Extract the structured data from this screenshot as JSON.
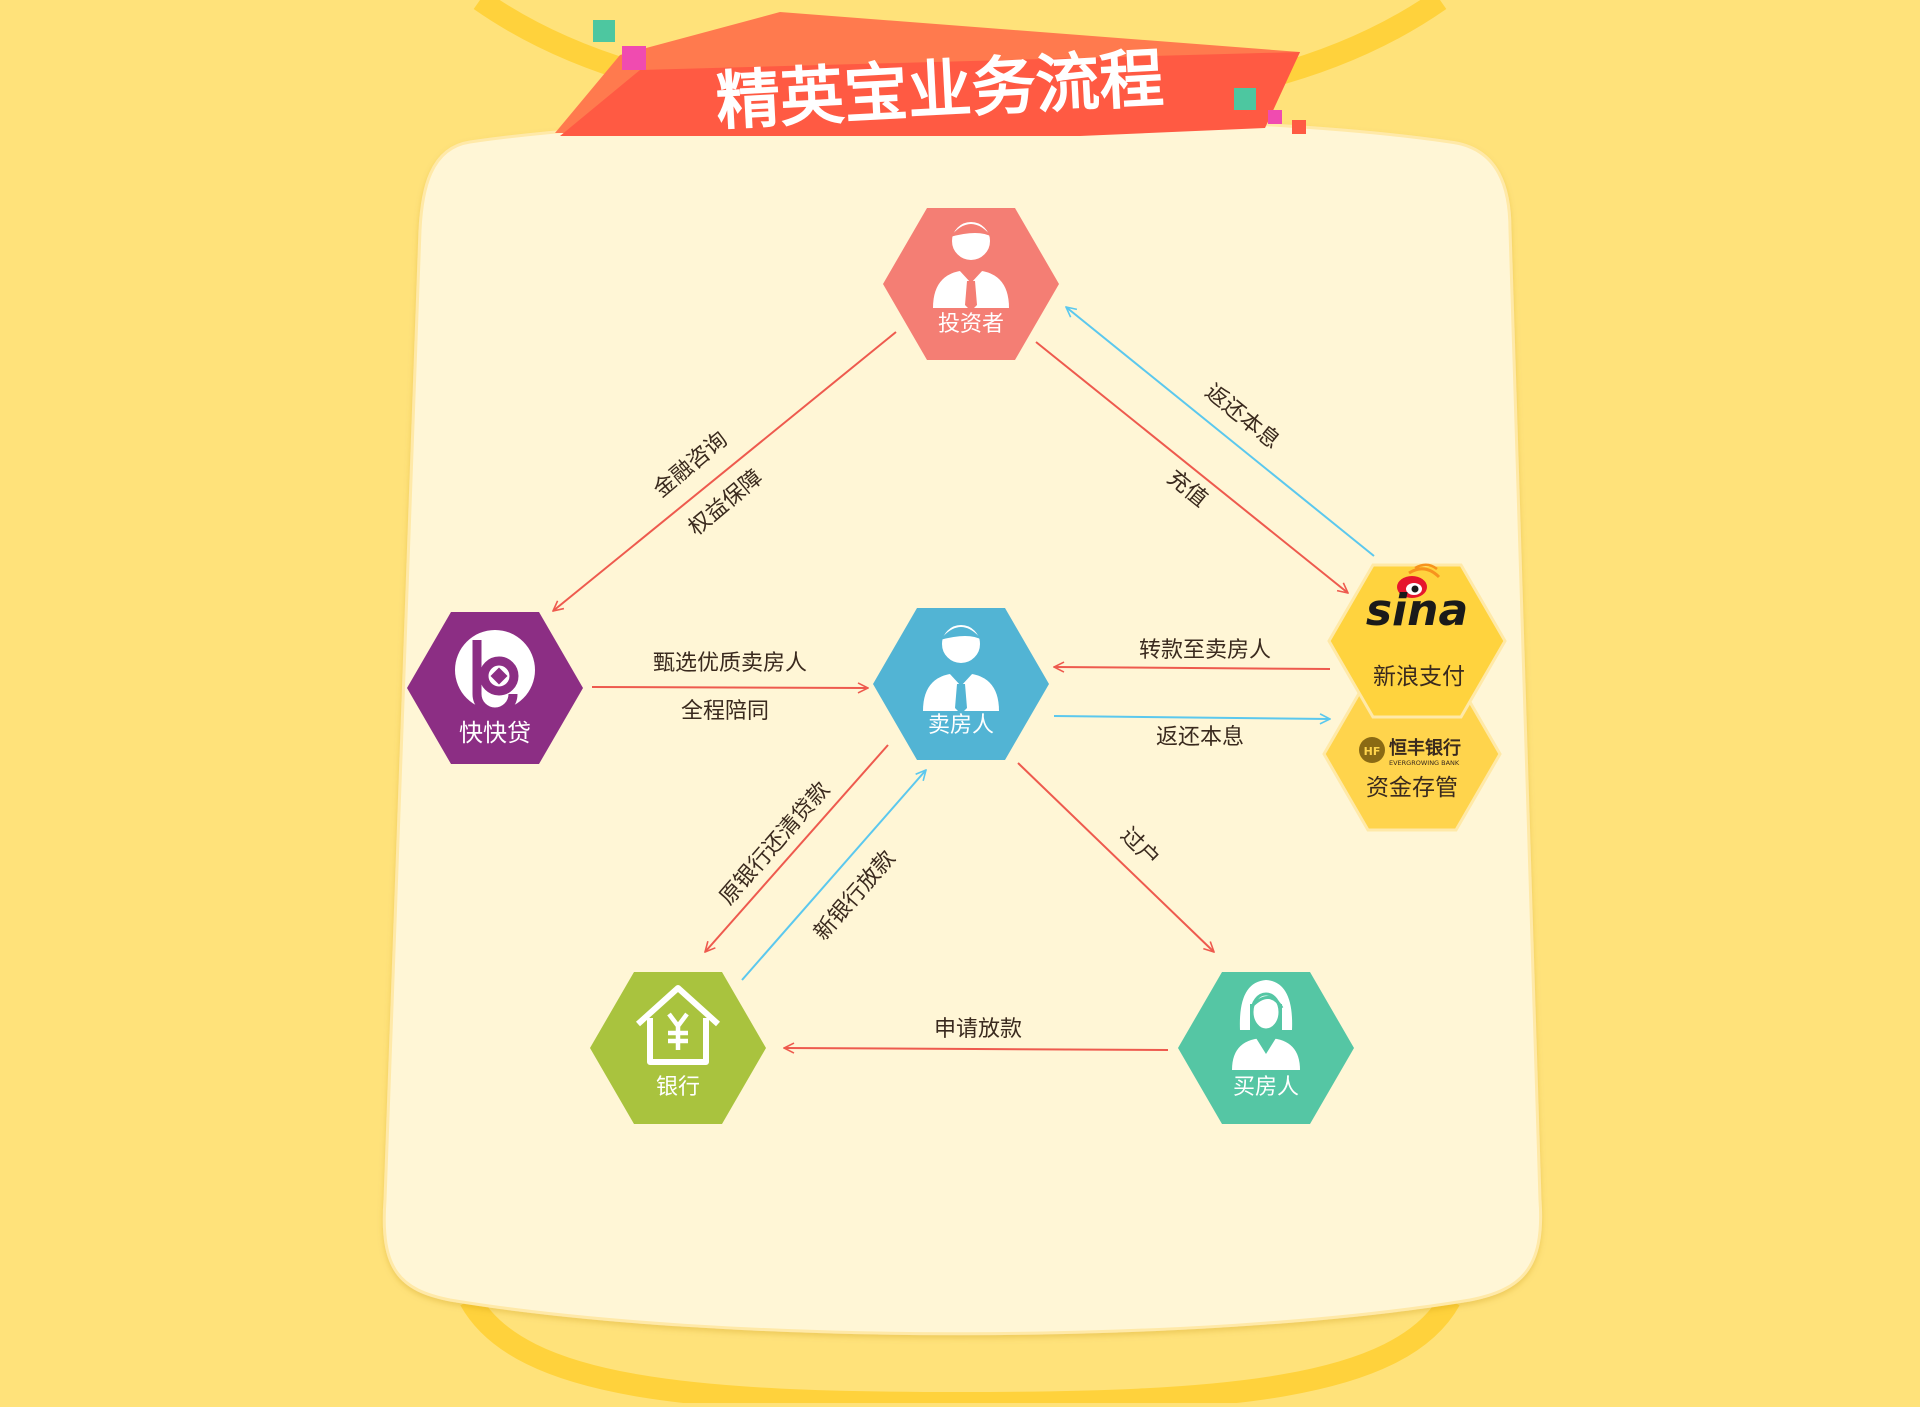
{
  "title": "精英宝业务流程",
  "colors": {
    "background": "#FFE27A",
    "card": "#FFF6D6",
    "banner": "#FF5A43",
    "red_arrow": "#EE5A4E",
    "blue_arrow": "#5BC8EE"
  },
  "nodes": {
    "investor": {
      "label": "投资者",
      "icon": "businessman-icon",
      "color": "#F47E74"
    },
    "kuaikuaidai": {
      "label": "快快贷",
      "icon": "kuaikuaidai-logo",
      "color": "#8C2E84"
    },
    "seller": {
      "label": "卖房人",
      "icon": "businessman-icon",
      "color": "#52B4D4"
    },
    "sina": {
      "label": "新浪支付",
      "logo": "sina",
      "icon": "sina-weibo-logo",
      "color": "#FFD33E"
    },
    "hengfeng": {
      "label": "资金存管",
      "bank_name": "恒丰银行",
      "bank_name_en": "EVERGROWING BANK",
      "bank_mark": "HF",
      "icon": "hengfeng-bank-logo",
      "color": "#FFD44C"
    },
    "bank": {
      "label": "银行",
      "icon": "bank-house-icon",
      "color": "#A9C33E"
    },
    "buyer": {
      "label": "买房人",
      "icon": "businesswoman-icon",
      "color": "#55C6A4"
    }
  },
  "edges": {
    "consult": "金融咨询",
    "protect": "权益保障",
    "return_investor": "返还本息",
    "recharge": "充值",
    "select": "甄选优质卖房人",
    "accompany": "全程陪同",
    "transfer_seller": "转款至卖房人",
    "return_seller": "返还本息",
    "repay_old": "原银行还清贷款",
    "new_loan": "新银行放款",
    "transfer_title": "过户",
    "apply_loan": "申请放款"
  }
}
